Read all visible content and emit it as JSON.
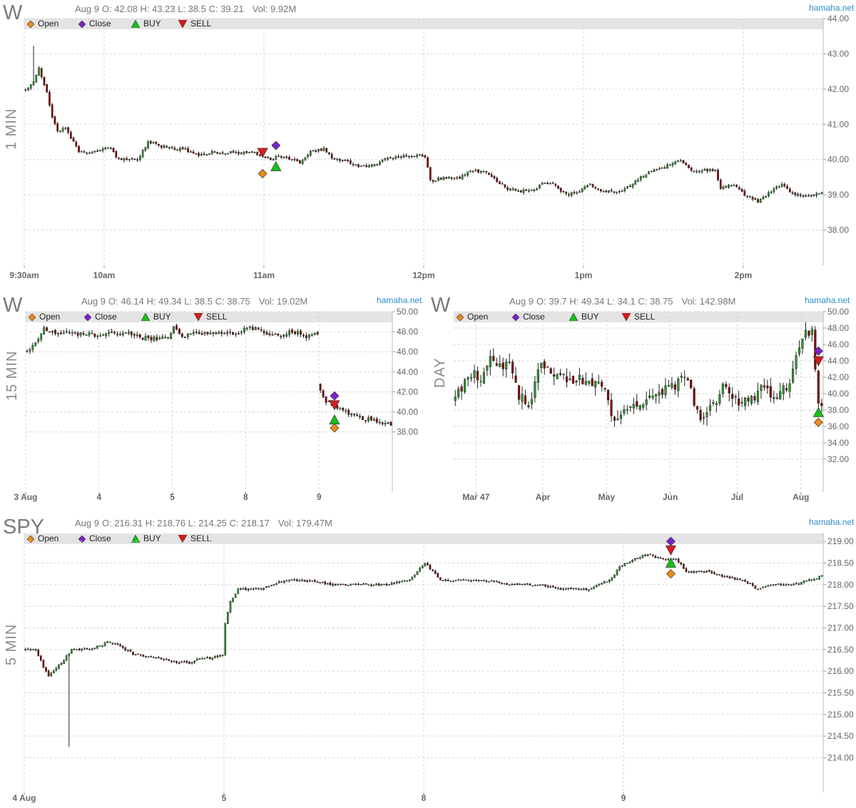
{
  "colors": {
    "up": "#2e9a2e",
    "down": "#8b0000",
    "grid": "#d6d6d6",
    "axis_text": "#666666",
    "legend_bg": "#e4e4e4",
    "open": "#ee8a1a",
    "close": "#7a22cc",
    "buy": "#17c017",
    "sell": "#d81b1b",
    "link": "#2a8fc8"
  },
  "legend": {
    "open": "Open",
    "close": "Close",
    "buy": "BUY",
    "sell": "SELL"
  },
  "site": "hamaha.net",
  "panels": {
    "p1": {
      "symbol": "W",
      "timeframe": "1 MIN",
      "date": "Aug 9",
      "ohlc": "O: 42.08 H: 43.23 L: 38.5 C: 39.21",
      "vol": "Vol: 9.92M"
    },
    "p2": {
      "symbol": "W",
      "timeframe": "15 MIN",
      "date": "Aug 9",
      "ohlc": "O: 46.14 H: 49.34 L: 38.5 C: 38.75",
      "vol": "Vol: 19.02M"
    },
    "p3": {
      "symbol": "W",
      "timeframe": "DAY",
      "date": "Aug 9",
      "ohlc": "O: 39.7 H: 49.34 L: 34.1 C: 38.75",
      "vol": "Vol: 142.98M"
    },
    "p4": {
      "symbol": "SPY",
      "timeframe": "5 MIN",
      "date": "Aug 9",
      "ohlc": "O: 216.31 H: 218.76 L: 214.25 C: 218.17",
      "vol": "Vol: 179.47M"
    }
  },
  "chart_data": [
    {
      "id": "p1",
      "type": "candlestick",
      "title": "W",
      "interval": "1 MIN",
      "ylim": [
        37.0,
        44.0
      ],
      "yticks": [
        "38.00",
        "39.00",
        "40.00",
        "41.00",
        "42.00",
        "43.00",
        "44.00"
      ],
      "xticks": [
        {
          "x": 0,
          "label": "9:30am"
        },
        {
          "x": 30,
          "label": "10am"
        },
        {
          "x": 90,
          "label": "11am"
        },
        {
          "x": 150,
          "label": "12pm"
        },
        {
          "x": 210,
          "label": "1pm"
        },
        {
          "x": 270,
          "label": "2pm"
        }
      ],
      "x_count": 300,
      "path": [
        [
          0,
          42.0
        ],
        [
          3,
          42.2
        ],
        [
          5,
          42.6
        ],
        [
          8,
          41.9
        ],
        [
          10,
          41.2
        ],
        [
          12,
          40.8
        ],
        [
          15,
          40.9
        ],
        [
          18,
          40.5
        ],
        [
          20,
          40.2
        ],
        [
          24,
          40.2
        ],
        [
          28,
          40.3
        ],
        [
          32,
          40.3
        ],
        [
          35,
          40.0
        ],
        [
          38,
          40.0
        ],
        [
          42,
          40.0
        ],
        [
          46,
          40.5
        ],
        [
          50,
          40.4
        ],
        [
          55,
          40.3
        ],
        [
          60,
          40.3
        ],
        [
          65,
          40.1
        ],
        [
          70,
          40.2
        ],
        [
          75,
          40.2
        ],
        [
          80,
          40.2
        ],
        [
          85,
          40.2
        ],
        [
          89,
          40.1
        ],
        [
          92,
          40.0
        ],
        [
          95,
          40.1
        ],
        [
          100,
          40.0
        ],
        [
          103,
          39.9
        ],
        [
          107,
          40.2
        ],
        [
          112,
          40.3
        ],
        [
          116,
          40.0
        ],
        [
          120,
          40.0
        ],
        [
          125,
          39.8
        ],
        [
          130,
          39.8
        ],
        [
          135,
          40.0
        ],
        [
          140,
          40.1
        ],
        [
          145,
          40.1
        ],
        [
          150,
          40.1
        ],
        [
          152,
          39.4
        ],
        [
          158,
          39.5
        ],
        [
          163,
          39.5
        ],
        [
          168,
          39.7
        ],
        [
          174,
          39.6
        ],
        [
          180,
          39.2
        ],
        [
          185,
          39.1
        ],
        [
          190,
          39.1
        ],
        [
          194,
          39.3
        ],
        [
          198,
          39.3
        ],
        [
          203,
          39.0
        ],
        [
          208,
          39.1
        ],
        [
          212,
          39.3
        ],
        [
          217,
          39.1
        ],
        [
          222,
          39.1
        ],
        [
          226,
          39.2
        ],
        [
          231,
          39.5
        ],
        [
          236,
          39.7
        ],
        [
          240,
          39.8
        ],
        [
          245,
          40.0
        ],
        [
          250,
          39.7
        ],
        [
          255,
          39.7
        ],
        [
          259,
          39.7
        ],
        [
          261,
          39.2
        ],
        [
          266,
          39.3
        ],
        [
          270,
          39.0
        ],
        [
          275,
          38.8
        ],
        [
          280,
          39.1
        ],
        [
          284,
          39.3
        ],
        [
          288,
          39.0
        ],
        [
          292,
          39.0
        ],
        [
          296,
          39.0
        ],
        [
          299,
          39.1
        ]
      ],
      "noise": 0.07,
      "spike_at": 3,
      "spike_high": 43.23,
      "markers": [
        {
          "kind": "sell",
          "x": 89,
          "y": 40.2
        },
        {
          "kind": "open",
          "x": 89,
          "y": 39.6
        },
        {
          "kind": "close",
          "x": 94,
          "y": 40.4
        },
        {
          "kind": "buy",
          "x": 94,
          "y": 39.8
        }
      ]
    },
    {
      "id": "p2",
      "type": "candlestick",
      "title": "W",
      "interval": "15 MIN",
      "ylim": [
        32.0,
        50.0
      ],
      "yticks": [
        "38.00",
        "40.00",
        "42.00",
        "44.00",
        "46.00",
        "48.00",
        "50.00"
      ],
      "xticks": [
        {
          "x": 0,
          "label": "3 Aug"
        },
        {
          "x": 26,
          "label": "4"
        },
        {
          "x": 52,
          "label": "5"
        },
        {
          "x": 78,
          "label": "8"
        },
        {
          "x": 104,
          "label": "9"
        }
      ],
      "x_count": 130,
      "path": [
        [
          0,
          46.1
        ],
        [
          3,
          47.0
        ],
        [
          6,
          48.3
        ],
        [
          9,
          48.0
        ],
        [
          14,
          47.9
        ],
        [
          20,
          47.8
        ],
        [
          25,
          47.6
        ],
        [
          30,
          47.8
        ],
        [
          35,
          47.9
        ],
        [
          40,
          47.4
        ],
        [
          45,
          47.3
        ],
        [
          50,
          47.4
        ],
        [
          52,
          48.4
        ],
        [
          55,
          47.6
        ],
        [
          60,
          47.9
        ],
        [
          65,
          47.9
        ],
        [
          70,
          47.7
        ],
        [
          75,
          48.0
        ],
        [
          80,
          48.4
        ],
        [
          85,
          47.7
        ],
        [
          90,
          47.5
        ],
        [
          93,
          47.9
        ],
        [
          96,
          48.0
        ],
        [
          99,
          47.5
        ],
        [
          103,
          47.9
        ],
        [
          104,
          42.1
        ],
        [
          106,
          41.0
        ],
        [
          110,
          40.4
        ],
        [
          113,
          40.0
        ],
        [
          116,
          39.5
        ],
        [
          120,
          39.3
        ],
        [
          125,
          39.0
        ],
        [
          129,
          38.8
        ]
      ],
      "gap_after": 103,
      "noise": 0.35,
      "markers": [
        {
          "kind": "close",
          "x": 109,
          "y": 41.6
        },
        {
          "kind": "sell",
          "x": 109,
          "y": 40.7
        },
        {
          "kind": "buy",
          "x": 109,
          "y": 39.2
        },
        {
          "kind": "open",
          "x": 109,
          "y": 38.4
        }
      ]
    },
    {
      "id": "p3",
      "type": "candlestick",
      "title": "W",
      "interval": "DAY",
      "ylim": [
        28.0,
        50.0
      ],
      "yticks": [
        "32.00",
        "34.00",
        "36.00",
        "38.00",
        "40.00",
        "42.00",
        "44.00",
        "46.00",
        "48.00",
        "50.00"
      ],
      "xticks": [
        {
          "x": 7,
          "label": "Mar 47"
        },
        {
          "x": 28,
          "label": "Apr"
        },
        {
          "x": 48,
          "label": "May"
        },
        {
          "x": 68,
          "label": "Jun"
        },
        {
          "x": 89,
          "label": "Jul"
        },
        {
          "x": 109,
          "label": "Aug"
        }
      ],
      "x_count": 116,
      "path": [
        [
          0,
          39.5
        ],
        [
          3,
          41.0
        ],
        [
          6,
          43.0
        ],
        [
          8,
          41.0
        ],
        [
          11,
          44.0
        ],
        [
          14,
          43.0
        ],
        [
          17,
          44.0
        ],
        [
          20,
          40.0
        ],
        [
          23,
          38.5
        ],
        [
          26,
          43.0
        ],
        [
          29,
          43.5
        ],
        [
          32,
          42.0
        ],
        [
          36,
          42.0
        ],
        [
          40,
          41.5
        ],
        [
          44,
          41.5
        ],
        [
          47,
          40.0
        ],
        [
          50,
          36.5
        ],
        [
          53,
          37.5
        ],
        [
          56,
          38.5
        ],
        [
          60,
          39.5
        ],
        [
          64,
          40.0
        ],
        [
          68,
          41.0
        ],
        [
          72,
          42.0
        ],
        [
          74,
          40.0
        ],
        [
          77,
          37.5
        ],
        [
          80,
          38.0
        ],
        [
          84,
          41.0
        ],
        [
          87,
          40.0
        ],
        [
          90,
          38.5
        ],
        [
          93,
          39.5
        ],
        [
          96,
          40.5
        ],
        [
          100,
          40.0
        ],
        [
          104,
          40.5
        ],
        [
          107,
          44.0
        ],
        [
          110,
          47.5
        ],
        [
          112,
          48.0
        ],
        [
          114,
          38.8
        ]
      ],
      "noise": 1.2,
      "markers": [
        {
          "kind": "close",
          "x": 114,
          "y": 45.2
        },
        {
          "kind": "sell",
          "x": 114,
          "y": 44.0
        },
        {
          "kind": "buy",
          "x": 114,
          "y": 37.7
        },
        {
          "kind": "open",
          "x": 114,
          "y": 36.5
        }
      ]
    },
    {
      "id": "p4",
      "type": "candlestick",
      "title": "SPY",
      "interval": "5 MIN",
      "ylim": [
        213.2,
        219.2
      ],
      "yticks": [
        "214.00",
        "214.50",
        "215.00",
        "215.50",
        "216.00",
        "216.50",
        "217.00",
        "217.50",
        "218.00",
        "218.50",
        "219.00"
      ],
      "xticks": [
        {
          "x": 0,
          "label": "4 Aug"
        },
        {
          "x": 78,
          "label": "5"
        },
        {
          "x": 156,
          "label": "8"
        },
        {
          "x": 234,
          "label": "9"
        }
      ],
      "x_count": 312,
      "path": [
        [
          0,
          216.5
        ],
        [
          4,
          216.5
        ],
        [
          7,
          216.1
        ],
        [
          9,
          215.9
        ],
        [
          14,
          216.2
        ],
        [
          18,
          216.5
        ],
        [
          25,
          216.5
        ],
        [
          30,
          216.6
        ],
        [
          32,
          216.7
        ],
        [
          36,
          216.6
        ],
        [
          42,
          216.4
        ],
        [
          50,
          216.3
        ],
        [
          55,
          216.3
        ],
        [
          57,
          216.2
        ],
        [
          64,
          216.2
        ],
        [
          68,
          216.3
        ],
        [
          73,
          216.3
        ],
        [
          77,
          216.4
        ],
        [
          78,
          217.1
        ],
        [
          80,
          217.6
        ],
        [
          83,
          217.9
        ],
        [
          88,
          217.9
        ],
        [
          92,
          217.9
        ],
        [
          96,
          218.0
        ],
        [
          102,
          218.1
        ],
        [
          110,
          218.1
        ],
        [
          120,
          218.0
        ],
        [
          130,
          218.0
        ],
        [
          140,
          218.0
        ],
        [
          150,
          218.1
        ],
        [
          156,
          218.5
        ],
        [
          162,
          218.1
        ],
        [
          170,
          218.1
        ],
        [
          180,
          218.1
        ],
        [
          190,
          218.0
        ],
        [
          200,
          218.0
        ],
        [
          210,
          217.9
        ],
        [
          220,
          217.9
        ],
        [
          228,
          218.1
        ],
        [
          232,
          218.4
        ],
        [
          238,
          218.6
        ],
        [
          243,
          218.7
        ],
        [
          248,
          218.6
        ],
        [
          254,
          218.6
        ],
        [
          258,
          218.3
        ],
        [
          266,
          218.3
        ],
        [
          272,
          218.2
        ],
        [
          280,
          218.1
        ],
        [
          286,
          217.9
        ],
        [
          292,
          218.0
        ],
        [
          300,
          218.0
        ],
        [
          306,
          218.1
        ],
        [
          311,
          218.2
        ]
      ],
      "noise": 0.04,
      "spike_at": 17,
      "spike_low": 214.25,
      "markers": [
        {
          "kind": "close",
          "x": 252,
          "y": 219.0
        },
        {
          "kind": "sell",
          "x": 252,
          "y": 218.8
        },
        {
          "kind": "buy",
          "x": 252,
          "y": 218.5
        },
        {
          "kind": "open",
          "x": 252,
          "y": 218.25
        }
      ]
    }
  ]
}
